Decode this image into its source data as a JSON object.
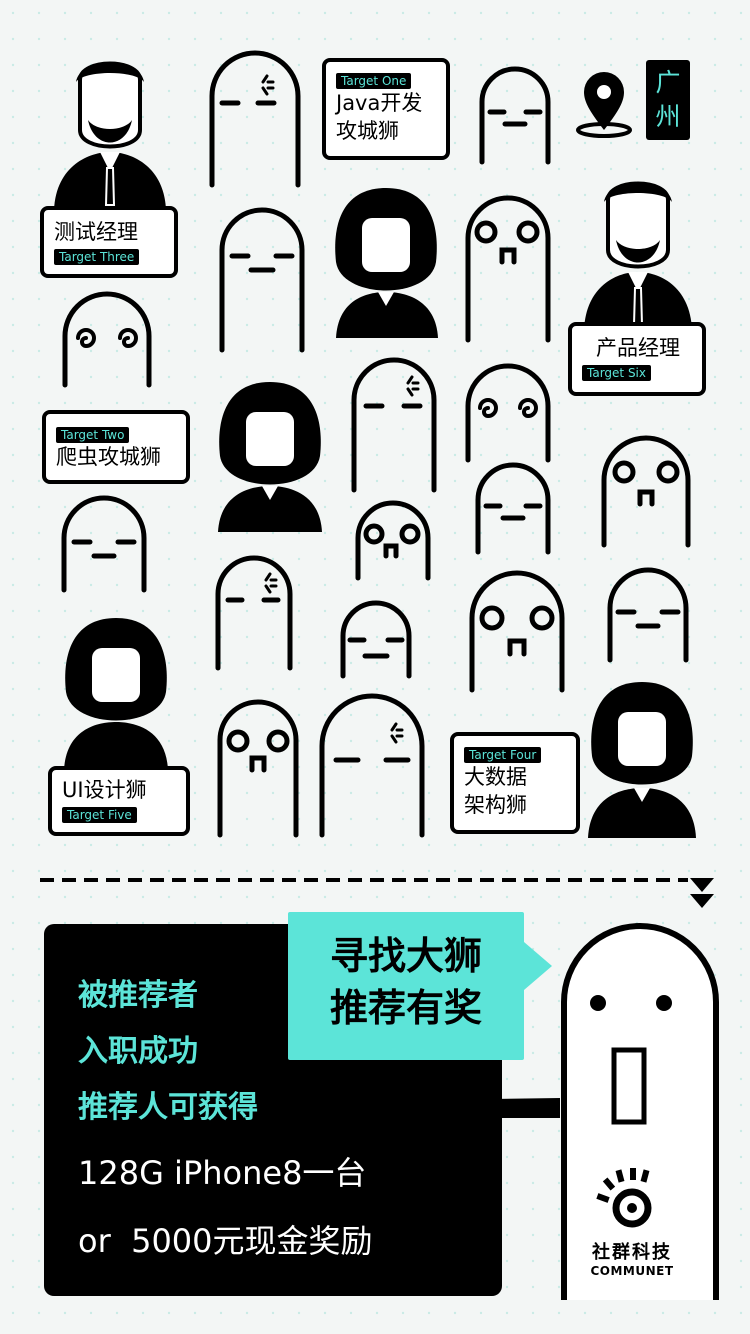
{
  "colors": {
    "accent": "#5ce4d8",
    "ink": "#000000",
    "background": "#f3f6f5"
  },
  "city": "广州",
  "targets": [
    {
      "tag": "Target One",
      "role_line1": "Java开发",
      "role_line2": "攻城狮"
    },
    {
      "tag": "Target Two",
      "role_line1": "爬虫攻城狮",
      "role_line2": ""
    },
    {
      "tag": "Target Three",
      "role_line1": "测试经理",
      "role_line2": ""
    },
    {
      "tag": "Target Four",
      "role_line1": "大数据",
      "role_line2": "架构狮"
    },
    {
      "tag": "Target Five",
      "role_line1": "UI设计狮",
      "role_line2": ""
    },
    {
      "tag": "Target Six",
      "role_line1": "产品经理",
      "role_line2": ""
    }
  ],
  "banner": {
    "line1": "寻找大狮",
    "line2": "推荐有奖"
  },
  "promo": {
    "lines": [
      "被推荐者",
      "入职成功",
      "推荐人可获得"
    ],
    "prize_line1": "128G iPhone8一台",
    "prize_line2": "or  5000元现金奖励"
  },
  "brand": {
    "cn": "社群科技",
    "en": "COMMUNET"
  },
  "icons": [
    "location-pin-icon",
    "double-chevron-down-icon",
    "communet-logo-icon"
  ]
}
